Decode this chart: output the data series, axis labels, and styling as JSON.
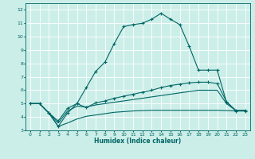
{
  "xlabel": "Humidex (Indice chaleur)",
  "bg_color": "#cceee8",
  "line_color": "#006666",
  "grid_color": "#ffffff",
  "xlim": [
    -0.5,
    23.5
  ],
  "ylim": [
    3,
    12.5
  ],
  "xticks": [
    0,
    1,
    2,
    3,
    4,
    5,
    6,
    7,
    8,
    9,
    10,
    11,
    12,
    13,
    14,
    15,
    16,
    17,
    18,
    19,
    20,
    21,
    22,
    23
  ],
  "yticks": [
    3,
    4,
    5,
    6,
    7,
    8,
    9,
    10,
    11,
    12
  ],
  "line1_x": [
    0,
    1,
    2,
    3,
    4,
    5,
    6,
    7,
    8,
    9,
    10,
    11,
    12,
    13,
    14,
    15,
    16,
    17,
    18,
    19,
    20,
    21,
    22,
    23
  ],
  "line1_y": [
    5.0,
    5.0,
    4.3,
    3.3,
    4.3,
    5.0,
    6.2,
    7.4,
    8.1,
    9.5,
    10.75,
    10.9,
    11.0,
    11.3,
    11.75,
    11.3,
    10.9,
    9.3,
    7.5,
    7.5,
    7.5,
    5.1,
    4.5,
    4.5
  ],
  "line2_x": [
    0,
    1,
    2,
    3,
    4,
    5,
    6,
    7,
    8,
    9,
    10,
    11,
    12,
    13,
    14,
    15,
    16,
    17,
    18,
    19,
    20,
    21,
    22,
    23
  ],
  "line2_y": [
    5.0,
    5.0,
    4.3,
    3.7,
    4.65,
    5.0,
    4.7,
    5.05,
    5.2,
    5.4,
    5.55,
    5.7,
    5.85,
    6.0,
    6.2,
    6.35,
    6.45,
    6.55,
    6.6,
    6.6,
    6.5,
    5.15,
    4.45,
    4.45
  ],
  "line3_x": [
    0,
    1,
    2,
    3,
    4,
    5,
    6,
    7,
    8,
    9,
    10,
    11,
    12,
    13,
    14,
    15,
    16,
    17,
    18,
    19,
    20,
    21,
    22,
    23
  ],
  "line3_y": [
    5.0,
    5.0,
    4.3,
    3.55,
    4.45,
    4.8,
    4.75,
    4.9,
    5.0,
    5.1,
    5.2,
    5.3,
    5.4,
    5.5,
    5.6,
    5.7,
    5.8,
    5.9,
    6.0,
    6.0,
    6.0,
    5.0,
    4.48,
    4.48
  ],
  "line4_x": [
    0,
    1,
    2,
    3,
    4,
    5,
    6,
    7,
    8,
    9,
    10,
    11,
    12,
    13,
    14,
    15,
    16,
    17,
    18,
    19,
    20,
    21,
    22,
    23
  ],
  "line4_y": [
    5.0,
    5.0,
    4.3,
    3.3,
    3.55,
    3.85,
    4.05,
    4.15,
    4.25,
    4.35,
    4.4,
    4.45,
    4.48,
    4.5,
    4.5,
    4.5,
    4.5,
    4.5,
    4.5,
    4.5,
    4.5,
    4.48,
    4.45,
    4.45
  ]
}
